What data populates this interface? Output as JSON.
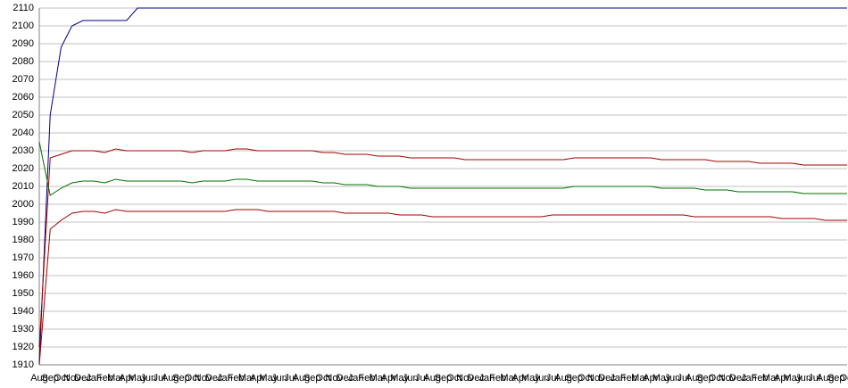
{
  "chart_data": {
    "type": "line",
    "categories": [
      "Aug",
      "Sep",
      "Oct",
      "Nov",
      "Dec",
      "Jan",
      "Feb",
      "Mar",
      "Apr",
      "May",
      "Jun",
      "Jul",
      "Aug",
      "Sep",
      "Oct",
      "Nov",
      "Dec",
      "Jan",
      "Feb",
      "Mar",
      "Apr",
      "May",
      "Jun",
      "Jul",
      "Aug",
      "Sep",
      "Oct",
      "Nov",
      "Dec",
      "Jan",
      "Feb",
      "Mar",
      "Apr",
      "May",
      "Jun",
      "Jul",
      "Aug",
      "Sep",
      "Oct",
      "Nov",
      "Dec",
      "Jan",
      "Feb",
      "Mar",
      "Apr",
      "May",
      "Jun",
      "Jul",
      "Aug",
      "Sep",
      "Oct",
      "Nov",
      "Dec",
      "Jan",
      "Feb",
      "Mar",
      "Apr",
      "May",
      "Jun",
      "Jul",
      "Aug",
      "Sep",
      "Oct",
      "Nov",
      "Dec",
      "Jan",
      "Feb",
      "Mar",
      "Apr",
      "May",
      "Jun",
      "Jul",
      "Aug",
      "Sep",
      "Oct"
    ],
    "series": [
      {
        "color": "#000080",
        "values": [
          1910,
          2050,
          2088,
          2100,
          2103,
          2103,
          2103,
          2103,
          2103,
          2110,
          2110,
          2110,
          2110,
          2110,
          2110,
          2110,
          2110,
          2110,
          2110,
          2110,
          2110,
          2110,
          2110,
          2110,
          2110,
          2110,
          2110,
          2110,
          2110,
          2110,
          2110,
          2110,
          2110,
          2110,
          2110,
          2110,
          2110,
          2110,
          2110,
          2110,
          2110,
          2110,
          2110,
          2110,
          2110,
          2110,
          2110,
          2110,
          2110,
          2110,
          2110,
          2110,
          2110,
          2110,
          2110,
          2110,
          2110,
          2110,
          2110,
          2110,
          2110,
          2110,
          2110,
          2110,
          2110,
          2110,
          2110,
          2110,
          2110,
          2110,
          2110,
          2110,
          2110,
          2110,
          2110
        ]
      },
      {
        "color": "#a00000",
        "values": [
          1920,
          2026,
          2028,
          2030,
          2030,
          2030,
          2029,
          2031,
          2030,
          2030,
          2030,
          2030,
          2030,
          2030,
          2029,
          2030,
          2030,
          2030,
          2031,
          2031,
          2030,
          2030,
          2030,
          2030,
          2030,
          2030,
          2029,
          2029,
          2028,
          2028,
          2028,
          2027,
          2027,
          2027,
          2026,
          2026,
          2026,
          2026,
          2026,
          2025,
          2025,
          2025,
          2025,
          2025,
          2025,
          2025,
          2025,
          2025,
          2025,
          2026,
          2026,
          2026,
          2026,
          2026,
          2026,
          2026,
          2026,
          2025,
          2025,
          2025,
          2025,
          2025,
          2024,
          2024,
          2024,
          2024,
          2023,
          2023,
          2023,
          2023,
          2022,
          2022,
          2022,
          2022,
          2022
        ]
      },
      {
        "color": "#007000",
        "values": [
          2035,
          2005,
          2009,
          2012,
          2013,
          2013,
          2012,
          2014,
          2013,
          2013,
          2013,
          2013,
          2013,
          2013,
          2012,
          2013,
          2013,
          2013,
          2014,
          2014,
          2013,
          2013,
          2013,
          2013,
          2013,
          2013,
          2012,
          2012,
          2011,
          2011,
          2011,
          2010,
          2010,
          2010,
          2009,
          2009,
          2009,
          2009,
          2009,
          2009,
          2009,
          2009,
          2009,
          2009,
          2009,
          2009,
          2009,
          2009,
          2009,
          2010,
          2010,
          2010,
          2010,
          2010,
          2010,
          2010,
          2010,
          2009,
          2009,
          2009,
          2009,
          2008,
          2008,
          2008,
          2007,
          2007,
          2007,
          2007,
          2007,
          2007,
          2006,
          2006,
          2006,
          2006,
          2006
        ]
      },
      {
        "color": "#a00000",
        "values": [
          1910,
          1986,
          1991,
          1995,
          1996,
          1996,
          1995,
          1997,
          1996,
          1996,
          1996,
          1996,
          1996,
          1996,
          1996,
          1996,
          1996,
          1996,
          1997,
          1997,
          1997,
          1996,
          1996,
          1996,
          1996,
          1996,
          1996,
          1996,
          1995,
          1995,
          1995,
          1995,
          1995,
          1994,
          1994,
          1994,
          1993,
          1993,
          1993,
          1993,
          1993,
          1993,
          1993,
          1993,
          1993,
          1993,
          1993,
          1994,
          1994,
          1994,
          1994,
          1994,
          1994,
          1994,
          1994,
          1994,
          1994,
          1994,
          1994,
          1994,
          1993,
          1993,
          1993,
          1993,
          1993,
          1993,
          1993,
          1993,
          1992,
          1992,
          1992,
          1992,
          1991,
          1991,
          1991
        ]
      }
    ],
    "ylim": [
      1910,
      2110
    ],
    "yticks": [
      1910,
      1920,
      1930,
      1940,
      1950,
      1960,
      1970,
      1980,
      1990,
      2000,
      2010,
      2020,
      2030,
      2040,
      2050,
      2060,
      2070,
      2080,
      2090,
      2100,
      2110
    ],
    "grid": true
  }
}
